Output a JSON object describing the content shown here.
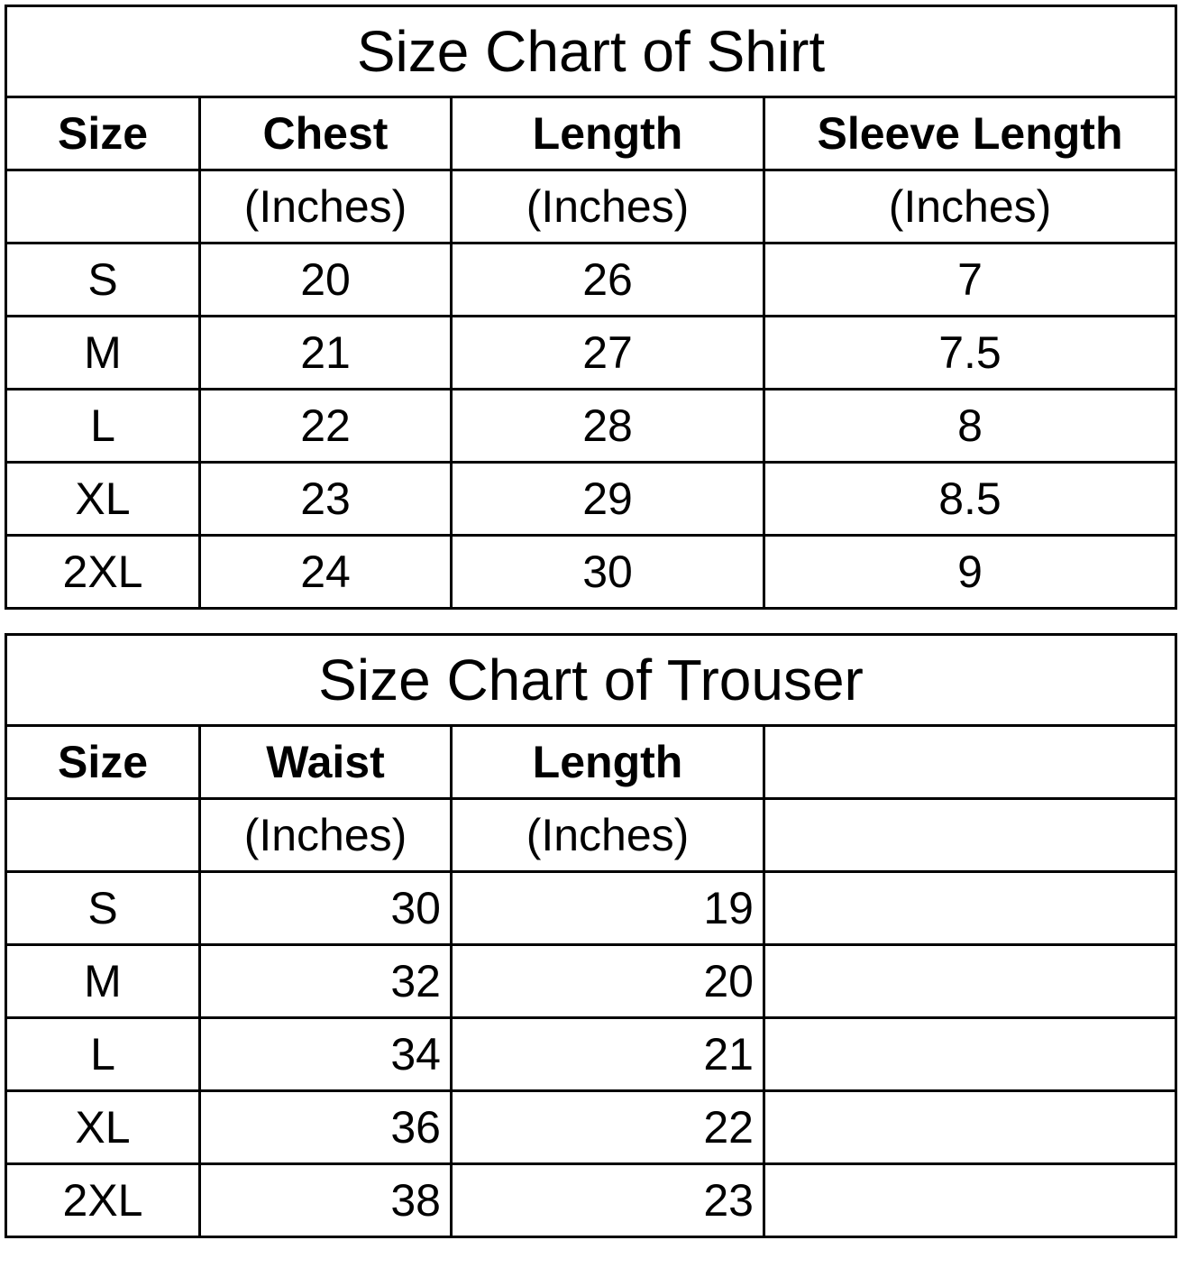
{
  "shirt": {
    "title": "Size Chart of  Shirt",
    "headers": [
      "Size",
      "Chest",
      "Length",
      "Sleeve Length"
    ],
    "units": [
      "",
      "(Inches)",
      "(Inches)",
      "(Inches)"
    ],
    "rows": [
      [
        "S",
        "20",
        "26",
        "7"
      ],
      [
        "M",
        "21",
        "27",
        "7.5"
      ],
      [
        "L",
        "22",
        "28",
        "8"
      ],
      [
        "XL",
        "23",
        "29",
        "8.5"
      ],
      [
        "2XL",
        "24",
        "30",
        "9"
      ]
    ]
  },
  "trouser": {
    "title": "Size Chart of  Trouser",
    "headers": [
      "Size",
      "Waist",
      "Length",
      ""
    ],
    "units": [
      "",
      "(Inches)",
      "(Inches)",
      ""
    ],
    "rows": [
      [
        "S",
        "30",
        "19",
        ""
      ],
      [
        "M",
        "32",
        "20",
        ""
      ],
      [
        "L",
        "34",
        "21",
        ""
      ],
      [
        "XL",
        "36",
        "22",
        ""
      ],
      [
        "2XL",
        "38",
        "23",
        ""
      ]
    ]
  }
}
